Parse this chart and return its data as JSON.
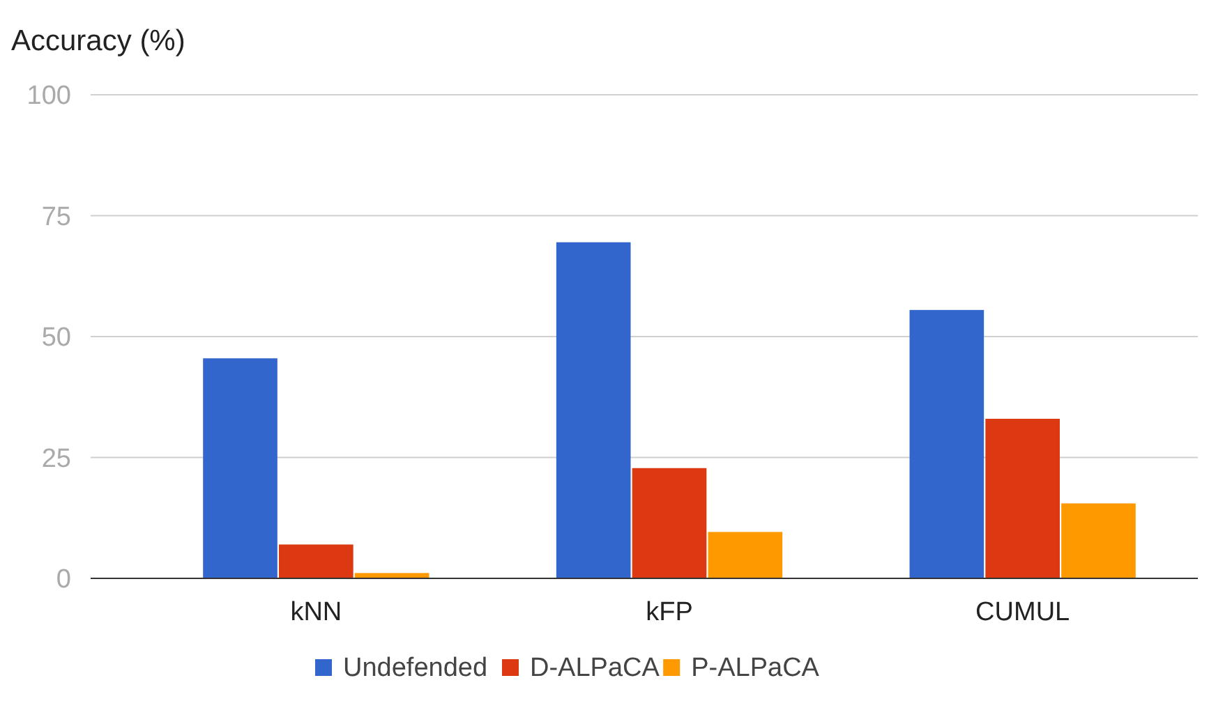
{
  "chart_data": {
    "type": "bar",
    "ylabel": "Accuracy (%)",
    "categories": [
      "kNN",
      "kFP",
      "CUMUL"
    ],
    "series": [
      {
        "name": "Undefended",
        "color": "#3366cc",
        "values": [
          45.5,
          69.5,
          55.5
        ]
      },
      {
        "name": "D-ALPaCA",
        "color": "#dc3912",
        "values": [
          7,
          22.8,
          33
        ]
      },
      {
        "name": "P-ALPaCA",
        "color": "#ff9900",
        "values": [
          1.1,
          9.6,
          15.5
        ]
      }
    ],
    "ylim": [
      0,
      100
    ],
    "yticks": [
      0,
      25,
      50,
      75,
      100
    ],
    "grid": "y",
    "legend": "bottom"
  }
}
